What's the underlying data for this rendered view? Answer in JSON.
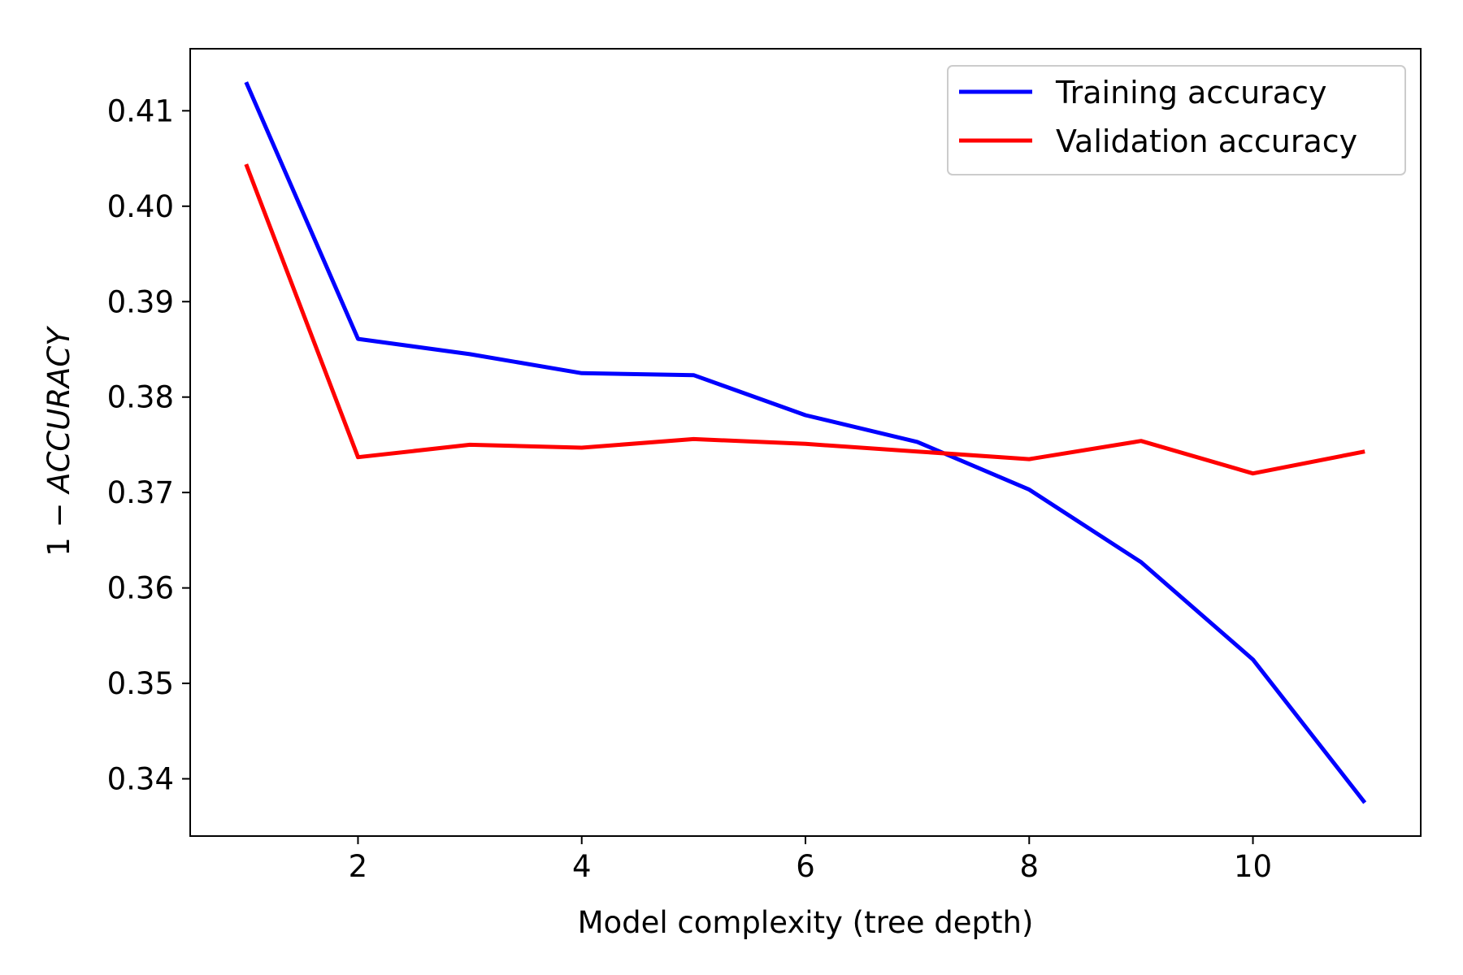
{
  "chart_data": {
    "type": "line",
    "title": "",
    "xlabel": "Model complexity (tree depth)",
    "ylabel_prefix": "1 − ",
    "ylabel_italic": "ACCURACY",
    "x": [
      1,
      2,
      3,
      4,
      5,
      6,
      7,
      8,
      9,
      10,
      11
    ],
    "xlim": [
      0.5,
      11.5
    ],
    "ylim": [
      0.334,
      0.4165
    ],
    "xticks": [
      2,
      4,
      6,
      8,
      10
    ],
    "yticks": [
      0.34,
      0.35,
      0.36,
      0.37,
      0.38,
      0.39,
      0.4,
      0.41
    ],
    "xtick_labels": [
      "2",
      "4",
      "6",
      "8",
      "10"
    ],
    "ytick_labels": [
      "0.34",
      "0.35",
      "0.36",
      "0.37",
      "0.38",
      "0.39",
      "0.40",
      "0.41"
    ],
    "grid": false,
    "legend_position": "top-right",
    "series": [
      {
        "name": "Training accuracy",
        "color": "#0000ff",
        "values": [
          0.413,
          0.3861,
          0.3845,
          0.3825,
          0.3823,
          0.3781,
          0.3753,
          0.3703,
          0.3627,
          0.3525,
          0.3375
        ]
      },
      {
        "name": "Validation accuracy",
        "color": "#ff0000",
        "values": [
          0.4044,
          0.3737,
          0.375,
          0.3747,
          0.3756,
          0.3751,
          0.3743,
          0.3735,
          0.3754,
          0.372,
          0.3743
        ]
      }
    ]
  }
}
